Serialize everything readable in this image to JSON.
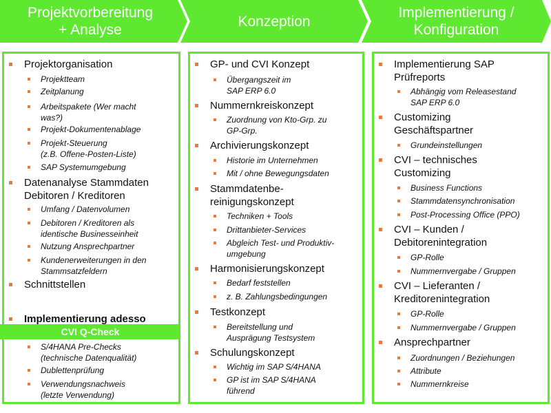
{
  "colors": {
    "accent": "#5ee830",
    "bullet": "#e87a3a"
  },
  "phases": [
    {
      "title": "Projektvorbereitung\n+ Analyse"
    },
    {
      "title": "Konzeption"
    },
    {
      "title": "Implementierung /\nKonfiguration"
    }
  ],
  "banner": "CVI Q-Check",
  "columns": [
    {
      "items": [
        {
          "level": 1,
          "text": "Projektorganisation"
        },
        {
          "level": 2,
          "text": "Projektteam"
        },
        {
          "level": 2,
          "text": "Zeitplanung"
        },
        {
          "level": 2,
          "text": "Arbeitspakete (Wer macht\nwas?)"
        },
        {
          "level": 2,
          "text": "Projekt-Dokumentenablage"
        },
        {
          "level": 2,
          "text": "Projekt-Steuerung\n(z.B. Offene-Posten-Liste)"
        },
        {
          "level": 2,
          "text": "SAP Systemumgebung"
        },
        {
          "level": 1,
          "text": "Datenanalyse Stammdaten\nDebitoren / Kreditoren"
        },
        {
          "level": 2,
          "text": "Umfang / Datenvolumen"
        },
        {
          "level": 2,
          "text": "Debitoren / Kreditoren als\nidentische Businesseinheit"
        },
        {
          "level": 2,
          "text": "Nutzung Ansprechpartner"
        },
        {
          "level": 2,
          "text": "Kundenerweiterungen  in den\nStammsatzfeldern"
        },
        {
          "level": 1,
          "text": "Schnittstellen"
        },
        {
          "level": 1,
          "text": "Implementierung adesso",
          "bold": true
        },
        {
          "level": 2,
          "text": "S/4HANA Pre-Checks\n(technische Datenqualität)"
        },
        {
          "level": 2,
          "text": "Dublettenprüfung"
        },
        {
          "level": 2,
          "text": "Verwendungsnachweis\n(letzte Verwendung)"
        }
      ]
    },
    {
      "items": [
        {
          "level": 1,
          "text": "GP- und CVI Konzept"
        },
        {
          "level": 2,
          "text": "Übergangszeit  im\nSAP ERP 6.0"
        },
        {
          "level": 1,
          "text": "Nummernkreiskonzept"
        },
        {
          "level": 2,
          "text": "Zuordnung von Kto-Grp. zu\nGP-Grp."
        },
        {
          "level": 1,
          "text": "Archivierungskonzept"
        },
        {
          "level": 2,
          "text": "Historie im Unternehmen"
        },
        {
          "level": 2,
          "text": "Mit / ohne Bewegungsdaten"
        },
        {
          "level": 1,
          "text": "Stammdatenbe-\nreinigungskonzept"
        },
        {
          "level": 2,
          "text": "Techniken + Tools"
        },
        {
          "level": 2,
          "text": "Drittanbieter-Services"
        },
        {
          "level": 2,
          "text": "Abgleich Test- und Produktiv-\numgebung"
        },
        {
          "level": 1,
          "text": "Harmonisierungskonzept"
        },
        {
          "level": 2,
          "text": "Bedarf feststellen"
        },
        {
          "level": 2,
          "text": "z. B. Zahlungsbedingungen"
        },
        {
          "level": 1,
          "text": "Testkonzept"
        },
        {
          "level": 2,
          "text": "Bereitstellung und\nAusprägung Testsystem"
        },
        {
          "level": 1,
          "text": "Schulungskonzept"
        },
        {
          "level": 2,
          "text": "Wichtig im SAP S/4HANA"
        },
        {
          "level": 2,
          "text": "GP ist im SAP S/4HANA\nführend"
        }
      ]
    },
    {
      "items": [
        {
          "level": 1,
          "text": "Implementierung  SAP\nPrüfreports"
        },
        {
          "level": 2,
          "text": "Abhängig  vom Releasestand\nSAP ERP 6.0"
        },
        {
          "level": 1,
          "text": "Customizing\nGeschäftspartner"
        },
        {
          "level": 2,
          "text": "Grundeinstellungen"
        },
        {
          "level": 1,
          "text": "CVI – technisches\nCustomizing"
        },
        {
          "level": 2,
          "text": "Business Functions"
        },
        {
          "level": 2,
          "text": "Stammdatensynchronisation"
        },
        {
          "level": 2,
          "text": "Post-Processing Office (PPO)"
        },
        {
          "level": 1,
          "text": "CVI – Kunden /\nDebitorenintegration"
        },
        {
          "level": 2,
          "text": "GP-Rolle"
        },
        {
          "level": 2,
          "text": "Nummernvergabe  / Gruppen"
        },
        {
          "level": 1,
          "text": "CVI – Lieferanten /\nKreditorenintegration"
        },
        {
          "level": 2,
          "text": "GP-Rolle"
        },
        {
          "level": 2,
          "text": "Nummernvergabe  / Gruppen"
        },
        {
          "level": 1,
          "text": "Ansprechpartner"
        },
        {
          "level": 2,
          "text": "Zuordnungen  / Beziehungen"
        },
        {
          "level": 2,
          "text": "Attribute"
        },
        {
          "level": 2,
          "text": "Nummernkreise"
        }
      ]
    }
  ]
}
